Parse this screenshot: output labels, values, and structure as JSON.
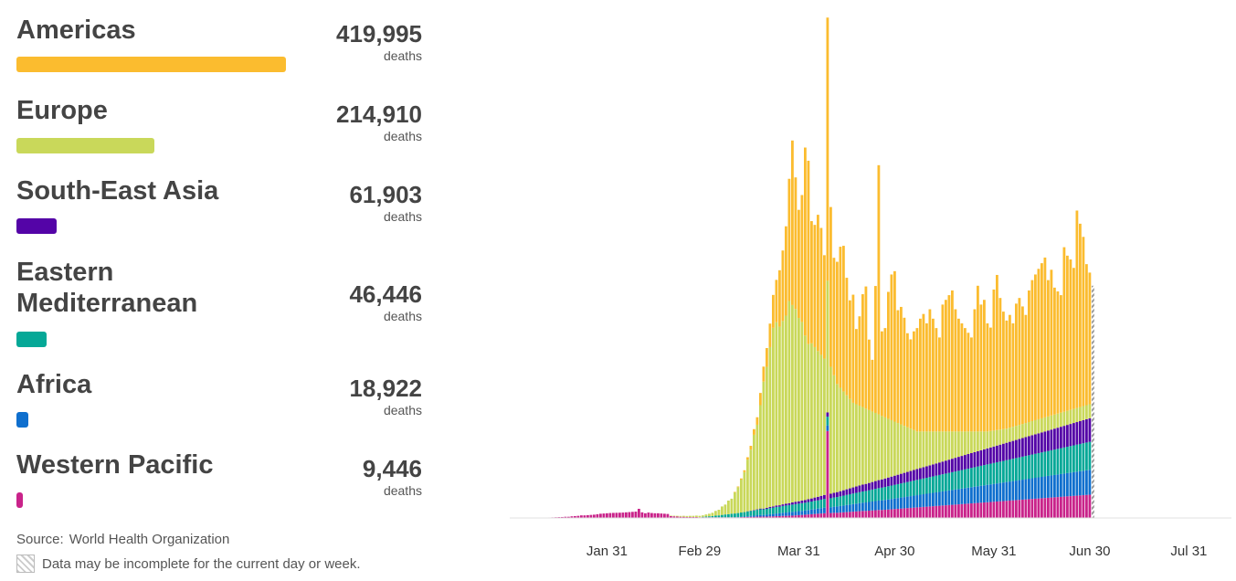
{
  "legend": {
    "unit_label": "deaths",
    "regions": [
      {
        "name": "Americas",
        "value": "419,995",
        "color": "#fbbc2f"
      },
      {
        "name": "Europe",
        "value": "214,910",
        "color": "#c9d85a"
      },
      {
        "name": "South-East Asia",
        "value": "61,903",
        "color": "#5404a7"
      },
      {
        "name": "Eastern Mediterranean",
        "value": "46,446",
        "color": "#05a897"
      },
      {
        "name": "Africa",
        "value": "18,922",
        "color": "#0f6fce"
      },
      {
        "name": "Western Pacific",
        "value": "9,446",
        "color": "#c9238a"
      }
    ]
  },
  "footer": {
    "source_label": "Source:",
    "source_name": "World Health Organization",
    "incomplete_note": "Data may be incomplete for the current day or week."
  },
  "chart_data": {
    "type": "bar",
    "stacked": true,
    "title": "",
    "xlabel": "",
    "ylabel": "",
    "x_ticks": [
      "Jan 31",
      "Feb 29",
      "Mar 31",
      "Apr 30",
      "May 31",
      "Jun 30",
      "Jul 31"
    ],
    "x_start": "Jan 1",
    "x_end": "Aug 13",
    "y_axis_visible": false,
    "grid": false,
    "ylim": [
      0,
      10300
    ],
    "series_colors": {
      "western_pacific": "#c9238a",
      "africa": "#0f6fce",
      "eastern_mediterranean": "#05a897",
      "south_east_asia": "#5404a7",
      "europe": "#c9d85a",
      "americas": "#fbbc2f"
    },
    "totals": {
      "americas": 419995,
      "europe": 214910,
      "south_east_asia": 61903,
      "eastern_mediterranean": 46446,
      "africa": 18922,
      "western_pacific": 9446
    },
    "series_order": [
      "western_pacific",
      "africa",
      "eastern_mediterranean",
      "south_east_asia",
      "europe",
      "americas"
    ],
    "daily": [
      [
        0,
        0,
        0,
        0,
        0,
        0
      ],
      [
        0,
        0,
        0,
        0,
        0,
        0
      ],
      [
        0,
        0,
        0,
        0,
        0,
        0
      ],
      [
        0,
        0,
        0,
        0,
        0,
        0
      ],
      [
        0,
        0,
        0,
        0,
        0,
        0
      ],
      [
        0,
        0,
        0,
        0,
        0,
        0
      ],
      [
        0,
        0,
        0,
        0,
        0,
        0
      ],
      [
        0,
        0,
        0,
        0,
        0,
        0
      ],
      [
        0,
        0,
        0,
        0,
        0,
        0
      ],
      [
        0,
        0,
        0,
        0,
        0,
        0
      ],
      [
        5,
        0,
        0,
        0,
        0,
        0
      ],
      [
        8,
        0,
        0,
        0,
        0,
        0
      ],
      [
        10,
        0,
        0,
        0,
        0,
        0
      ],
      [
        12,
        0,
        0,
        0,
        0,
        0
      ],
      [
        15,
        0,
        0,
        0,
        0,
        0
      ],
      [
        18,
        0,
        0,
        0,
        0,
        0
      ],
      [
        20,
        0,
        0,
        0,
        0,
        0
      ],
      [
        25,
        0,
        0,
        0,
        0,
        0
      ],
      [
        25,
        0,
        0,
        0,
        0,
        0
      ],
      [
        35,
        0,
        0,
        0,
        0,
        0
      ],
      [
        40,
        0,
        0,
        0,
        0,
        0
      ],
      [
        45,
        0,
        0,
        0,
        0,
        0
      ],
      [
        55,
        0,
        0,
        0,
        0,
        0
      ],
      [
        55,
        0,
        0,
        0,
        0,
        0
      ],
      [
        60,
        0,
        0,
        0,
        0,
        0
      ],
      [
        65,
        0,
        0,
        0,
        0,
        0
      ],
      [
        70,
        0,
        0,
        0,
        0,
        0
      ],
      [
        80,
        0,
        0,
        0,
        0,
        0
      ],
      [
        90,
        0,
        0,
        0,
        0,
        0
      ],
      [
        95,
        0,
        0,
        0,
        0,
        0
      ],
      [
        100,
        0,
        0,
        0,
        0,
        0
      ],
      [
        105,
        0,
        0,
        0,
        0,
        0
      ],
      [
        108,
        0,
        0,
        0,
        0,
        0
      ],
      [
        110,
        0,
        0,
        0,
        0,
        0
      ],
      [
        112,
        0,
        0,
        0,
        0,
        0
      ],
      [
        115,
        0,
        0,
        0,
        0,
        0
      ],
      [
        120,
        0,
        0,
        0,
        0,
        0
      ],
      [
        125,
        0,
        0,
        0,
        0,
        0
      ],
      [
        130,
        0,
        0,
        0,
        0,
        0
      ],
      [
        135,
        0,
        0,
        0,
        0,
        0
      ],
      [
        195,
        0,
        0,
        0,
        0,
        0
      ],
      [
        120,
        0,
        0,
        0,
        0,
        0
      ],
      [
        100,
        0,
        0,
        0,
        0,
        0
      ],
      [
        115,
        0,
        0,
        0,
        0,
        0
      ],
      [
        105,
        0,
        0,
        0,
        0,
        0
      ],
      [
        100,
        0,
        0,
        0,
        0,
        0
      ],
      [
        100,
        0,
        0,
        0,
        0,
        0
      ],
      [
        95,
        0,
        0,
        0,
        0,
        0
      ],
      [
        90,
        0,
        0,
        0,
        0,
        0
      ],
      [
        85,
        0,
        0,
        0,
        0,
        0
      ],
      [
        40,
        0,
        0,
        0,
        10,
        0
      ],
      [
        35,
        0,
        0,
        0,
        12,
        0
      ],
      [
        30,
        0,
        0,
        0,
        15,
        0
      ],
      [
        25,
        0,
        0,
        0,
        18,
        0
      ],
      [
        25,
        0,
        0,
        0,
        20,
        0
      ],
      [
        20,
        0,
        0,
        0,
        22,
        0
      ],
      [
        20,
        0,
        0,
        0,
        25,
        0
      ],
      [
        20,
        0,
        0,
        0,
        25,
        0
      ],
      [
        20,
        0,
        0,
        0,
        30,
        0
      ],
      [
        15,
        0,
        0,
        0,
        30,
        0
      ],
      [
        15,
        0,
        10,
        0,
        30,
        0
      ],
      [
        15,
        0,
        15,
        0,
        45,
        0
      ],
      [
        15,
        0,
        20,
        0,
        55,
        0
      ],
      [
        15,
        0,
        25,
        0,
        70,
        0
      ],
      [
        15,
        0,
        35,
        0,
        100,
        0
      ],
      [
        15,
        0,
        40,
        0,
        120,
        0
      ],
      [
        15,
        0,
        50,
        0,
        180,
        0
      ],
      [
        15,
        0,
        60,
        0,
        210,
        0
      ],
      [
        15,
        0,
        65,
        0,
        290,
        0
      ],
      [
        15,
        0,
        75,
        0,
        320,
        0
      ],
      [
        15,
        0,
        80,
        0,
        450,
        10
      ],
      [
        15,
        5,
        85,
        0,
        550,
        15
      ],
      [
        18,
        8,
        90,
        0,
        700,
        25
      ],
      [
        20,
        10,
        95,
        0,
        850,
        40
      ],
      [
        22,
        15,
        100,
        5,
        1100,
        50
      ],
      [
        25,
        20,
        105,
        5,
        1300,
        80
      ],
      [
        25,
        25,
        110,
        10,
        1600,
        120
      ],
      [
        28,
        30,
        115,
        10,
        1800,
        160
      ],
      [
        30,
        35,
        120,
        15,
        2200,
        260
      ],
      [
        30,
        35,
        120,
        15,
        2700,
        320
      ],
      [
        30,
        40,
        125,
        20,
        3000,
        400
      ],
      [
        35,
        45,
        130,
        25,
        3400,
        500
      ],
      [
        35,
        50,
        135,
        25,
        3800,
        700
      ],
      [
        40,
        55,
        140,
        30,
        3900,
        900
      ],
      [
        40,
        60,
        140,
        30,
        3800,
        1200
      ],
      [
        45,
        65,
        145,
        35,
        3900,
        1500
      ],
      [
        45,
        70,
        150,
        40,
        4000,
        1900
      ],
      [
        50,
        75,
        150,
        40,
        4300,
        2600
      ],
      [
        50,
        80,
        155,
        45,
        4200,
        3500
      ],
      [
        55,
        80,
        160,
        50,
        4100,
        2800
      ],
      [
        60,
        85,
        160,
        50,
        3900,
        2300
      ],
      [
        65,
        85,
        165,
        55,
        3800,
        2700
      ],
      [
        70,
        90,
        165,
        55,
        3500,
        4000
      ],
      [
        75,
        95,
        170,
        60,
        3300,
        3900
      ],
      [
        80,
        100,
        170,
        65,
        3300,
        2600
      ],
      [
        85,
        105,
        175,
        70,
        3200,
        2600
      ],
      [
        90,
        110,
        175,
        75,
        3100,
        2900
      ],
      [
        95,
        115,
        180,
        80,
        3000,
        2700
      ],
      [
        100,
        120,
        185,
        85,
        2900,
        2200
      ],
      [
        1850,
        120,
        185,
        90,
        2800,
        5600
      ],
      [
        105,
        125,
        190,
        95,
        2700,
        3400
      ],
      [
        110,
        130,
        195,
        100,
        2500,
        2500
      ],
      [
        110,
        135,
        200,
        105,
        2300,
        2600
      ],
      [
        115,
        140,
        205,
        110,
        2200,
        3000
      ],
      [
        120,
        145,
        210,
        115,
        2100,
        3100
      ],
      [
        125,
        150,
        215,
        120,
        2000,
        2500
      ],
      [
        130,
        155,
        220,
        125,
        1900,
        2100
      ],
      [
        135,
        160,
        225,
        130,
        1800,
        2300
      ],
      [
        140,
        165,
        230,
        135,
        1750,
        1600
      ],
      [
        145,
        170,
        235,
        140,
        1700,
        1900
      ],
      [
        150,
        175,
        240,
        145,
        1650,
        2400
      ],
      [
        150,
        180,
        245,
        150,
        1600,
        2600
      ],
      [
        155,
        185,
        250,
        155,
        1550,
        1500
      ],
      [
        160,
        190,
        255,
        160,
        1500,
        1100
      ],
      [
        165,
        195,
        260,
        165,
        1450,
        2700
      ],
      [
        170,
        200,
        265,
        170,
        1400,
        5300
      ],
      [
        170,
        205,
        270,
        175,
        1350,
        1800
      ],
      [
        175,
        210,
        275,
        180,
        1300,
        1900
      ],
      [
        180,
        215,
        280,
        185,
        1250,
        2700
      ],
      [
        185,
        220,
        285,
        190,
        1200,
        3100
      ],
      [
        190,
        225,
        290,
        195,
        1150,
        3200
      ],
      [
        195,
        230,
        295,
        200,
        1100,
        2400
      ],
      [
        200,
        235,
        300,
        205,
        1050,
        2500
      ],
      [
        205,
        240,
        305,
        210,
        1000,
        2300
      ],
      [
        210,
        245,
        310,
        215,
        950,
        2000
      ],
      [
        215,
        250,
        315,
        220,
        900,
        1900
      ],
      [
        220,
        255,
        320,
        225,
        850,
        2100
      ],
      [
        225,
        260,
        325,
        230,
        800,
        2200
      ],
      [
        230,
        265,
        330,
        235,
        780,
        2400
      ],
      [
        235,
        270,
        335,
        240,
        760,
        2500
      ],
      [
        240,
        275,
        340,
        245,
        740,
        2300
      ],
      [
        245,
        280,
        345,
        250,
        720,
        2600
      ],
      [
        250,
        285,
        350,
        255,
        700,
        2400
      ],
      [
        255,
        290,
        355,
        260,
        680,
        2200
      ],
      [
        260,
        295,
        360,
        265,
        660,
        2000
      ],
      [
        265,
        300,
        365,
        270,
        640,
        2700
      ],
      [
        270,
        305,
        370,
        275,
        620,
        2800
      ],
      [
        275,
        310,
        375,
        280,
        600,
        2900
      ],
      [
        280,
        315,
        380,
        285,
        580,
        3000
      ],
      [
        285,
        320,
        385,
        290,
        560,
        2600
      ],
      [
        290,
        325,
        390,
        295,
        540,
        2400
      ],
      [
        295,
        330,
        395,
        300,
        520,
        2300
      ],
      [
        300,
        335,
        400,
        305,
        500,
        2200
      ],
      [
        305,
        340,
        405,
        310,
        480,
        2100
      ],
      [
        310,
        345,
        410,
        315,
        460,
        2000
      ],
      [
        315,
        350,
        415,
        320,
        440,
        2600
      ],
      [
        320,
        355,
        420,
        325,
        420,
        3100
      ],
      [
        325,
        360,
        425,
        330,
        400,
        2700
      ],
      [
        330,
        365,
        430,
        335,
        380,
        2800
      ],
      [
        335,
        370,
        435,
        340,
        360,
        2300
      ],
      [
        340,
        375,
        440,
        345,
        350,
        2200
      ],
      [
        345,
        380,
        445,
        350,
        340,
        3000
      ],
      [
        350,
        385,
        450,
        355,
        330,
        3300
      ],
      [
        355,
        390,
        455,
        360,
        320,
        2800
      ],
      [
        360,
        395,
        460,
        365,
        310,
        2500
      ],
      [
        365,
        400,
        465,
        370,
        300,
        2300
      ],
      [
        370,
        405,
        470,
        375,
        300,
        2400
      ],
      [
        375,
        410,
        475,
        380,
        300,
        2200
      ],
      [
        380,
        415,
        480,
        385,
        300,
        2600
      ],
      [
        385,
        420,
        485,
        390,
        300,
        2700
      ],
      [
        390,
        425,
        490,
        395,
        300,
        2500
      ],
      [
        395,
        430,
        495,
        400,
        300,
        2300
      ],
      [
        400,
        435,
        500,
        405,
        300,
        2800
      ],
      [
        405,
        440,
        505,
        410,
        300,
        3000
      ],
      [
        410,
        445,
        510,
        415,
        300,
        3100
      ],
      [
        415,
        450,
        515,
        420,
        300,
        3200
      ],
      [
        420,
        455,
        520,
        425,
        300,
        3300
      ],
      [
        425,
        460,
        525,
        430,
        300,
        3400
      ],
      [
        430,
        465,
        530,
        435,
        300,
        2900
      ],
      [
        435,
        470,
        535,
        440,
        300,
        3100
      ],
      [
        440,
        475,
        540,
        445,
        300,
        2700
      ],
      [
        445,
        480,
        545,
        450,
        300,
        2600
      ],
      [
        450,
        485,
        550,
        455,
        300,
        2500
      ],
      [
        455,
        490,
        555,
        460,
        300,
        3500
      ],
      [
        460,
        495,
        560,
        465,
        300,
        3300
      ],
      [
        465,
        500,
        565,
        470,
        300,
        3200
      ],
      [
        470,
        505,
        570,
        475,
        300,
        3000
      ],
      [
        475,
        510,
        575,
        480,
        300,
        4200
      ],
      [
        480,
        515,
        580,
        485,
        300,
        3900
      ],
      [
        485,
        520,
        585,
        490,
        300,
        3600
      ],
      [
        490,
        525,
        590,
        495,
        300,
        3000
      ],
      [
        495,
        530,
        595,
        500,
        300,
        2800
      ],
      [
        500,
        535,
        600,
        505,
        300,
        2500
      ]
    ]
  }
}
